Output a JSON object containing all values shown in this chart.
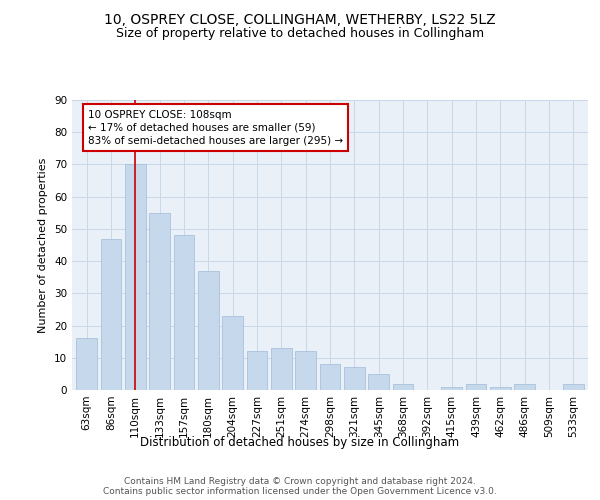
{
  "title1": "10, OSPREY CLOSE, COLLINGHAM, WETHERBY, LS22 5LZ",
  "title2": "Size of property relative to detached houses in Collingham",
  "xlabel": "Distribution of detached houses by size in Collingham",
  "ylabel": "Number of detached properties",
  "categories": [
    "63sqm",
    "86sqm",
    "110sqm",
    "133sqm",
    "157sqm",
    "180sqm",
    "204sqm",
    "227sqm",
    "251sqm",
    "274sqm",
    "298sqm",
    "321sqm",
    "345sqm",
    "368sqm",
    "392sqm",
    "415sqm",
    "439sqm",
    "462sqm",
    "486sqm",
    "509sqm",
    "533sqm"
  ],
  "values": [
    16,
    47,
    70,
    55,
    48,
    37,
    23,
    12,
    13,
    12,
    8,
    7,
    5,
    2,
    0,
    1,
    2,
    1,
    2,
    0,
    2
  ],
  "bar_color": "#c5d8ec",
  "bar_edge_color": "#a0bcd8",
  "grid_color": "#c8d8e8",
  "background_color": "#eaf0f8",
  "vline_x_index": 2,
  "vline_color": "#cc0000",
  "annotation_text": "10 OSPREY CLOSE: 108sqm\n← 17% of detached houses are smaller (59)\n83% of semi-detached houses are larger (295) →",
  "annotation_box_color": "#ffffff",
  "annotation_border_color": "#cc0000",
  "ylim": [
    0,
    90
  ],
  "yticks": [
    0,
    10,
    20,
    30,
    40,
    50,
    60,
    70,
    80,
    90
  ],
  "footer1": "Contains HM Land Registry data © Crown copyright and database right 2024.",
  "footer2": "Contains public sector information licensed under the Open Government Licence v3.0.",
  "title1_fontsize": 10,
  "title2_fontsize": 9,
  "xlabel_fontsize": 8.5,
  "ylabel_fontsize": 8,
  "tick_fontsize": 7.5,
  "footer_fontsize": 6.5,
  "annotation_fontsize": 7.5
}
